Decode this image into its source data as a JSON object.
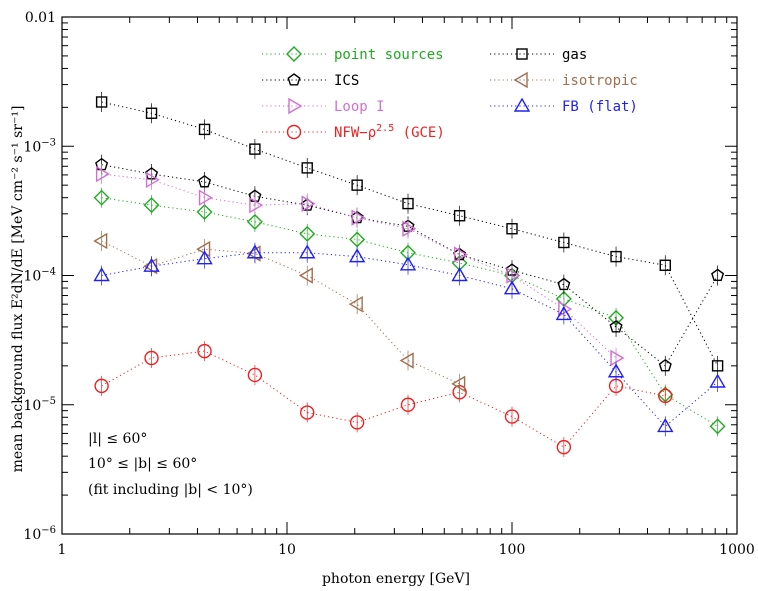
{
  "chart_data": {
    "type": "scatter",
    "xlabel": "photon energy [GeV]",
    "ylabel": "mean background flux E²dN/dE [MeV cm⁻² s⁻¹ sr⁻¹]",
    "xscale": "log",
    "yscale": "log",
    "xlim": [
      1,
      1000
    ],
    "ylim": [
      1e-06,
      0.01
    ],
    "x_ticks": [
      {
        "v": 1,
        "label": "1"
      },
      {
        "v": 10,
        "label": "10"
      },
      {
        "v": 100,
        "label": "100"
      },
      {
        "v": 1000,
        "label": "1000"
      }
    ],
    "y_ticks": [
      {
        "v": 1e-06,
        "base": "10",
        "exp": "−6"
      },
      {
        "v": 1e-05,
        "base": "10",
        "exp": "−5"
      },
      {
        "v": 0.0001,
        "base": "10",
        "exp": "−4"
      },
      {
        "v": 0.001,
        "base": "10",
        "exp": "−3"
      },
      {
        "v": 0.01,
        "base": "0.01",
        "exp": ""
      }
    ],
    "annotations": [
      "|l| ≤ 60°",
      "10° ≤ |b| ≤ 60°",
      "(fit including |b| < 10°)"
    ],
    "x": [
      1.5,
      2.5,
      4.3,
      7.2,
      12.3,
      20.5,
      34.5,
      58.5,
      100.0,
      170.0,
      290.0,
      480.0,
      820.0
    ],
    "series": [
      {
        "name": "point sources",
        "color": "#22aa22",
        "marker": "diamond",
        "values": [
          0.0004,
          0.00035,
          0.00031,
          0.00026,
          0.00021,
          0.00019,
          0.00015,
          0.000125,
          0.0001,
          6.6e-05,
          4.7e-05,
          1.2e-05,
          6.8e-06
        ]
      },
      {
        "name": "ICS",
        "color": "#000000",
        "marker": "pentagon",
        "values": [
          0.00072,
          0.00061,
          0.00053,
          0.00041,
          0.00035,
          0.00028,
          0.00024,
          0.000145,
          0.00011,
          8.5e-05,
          4e-05,
          2e-05,
          0.0001
        ]
      },
      {
        "name": "Loop I",
        "color": "#d070d0",
        "marker": "triangle-right",
        "values": [
          0.00061,
          0.00055,
          0.0004,
          0.00035,
          0.00036,
          0.00028,
          0.00023,
          0.000145,
          0.0001,
          5.5e-05,
          2.3e-05,
          null,
          null
        ]
      },
      {
        "name": "NFW−ρ^2.5 (GCE)",
        "color": "#ee2222",
        "marker": "circle",
        "values": [
          1.4e-05,
          2.3e-05,
          2.6e-05,
          1.7e-05,
          8.7e-06,
          7.3e-06,
          1e-05,
          1.25e-05,
          8.1e-06,
          4.7e-06,
          1.4e-05,
          1.17e-05,
          null
        ]
      },
      {
        "name": "gas",
        "color": "#000000",
        "marker": "square",
        "values": [
          0.0022,
          0.0018,
          0.00135,
          0.00095,
          0.00068,
          0.0005,
          0.00036,
          0.00029,
          0.00023,
          0.00018,
          0.00014,
          0.00012,
          2e-05
        ]
      },
      {
        "name": "isotropic",
        "color": "#a07050",
        "marker": "triangle-left",
        "values": [
          0.000185,
          0.000118,
          0.00016,
          0.000148,
          0.0001,
          6e-05,
          2.2e-05,
          1.45e-05,
          null,
          null,
          null,
          null,
          null
        ]
      },
      {
        "name": "FB (flat)",
        "color": "#2222ee",
        "marker": "triangle-up",
        "values": [
          0.0001,
          0.000118,
          0.000135,
          0.00015,
          0.00015,
          0.00014,
          0.000121,
          0.0001,
          7.9e-05,
          5e-05,
          1.8e-05,
          6.8e-06,
          1.5e-05
        ]
      }
    ]
  }
}
